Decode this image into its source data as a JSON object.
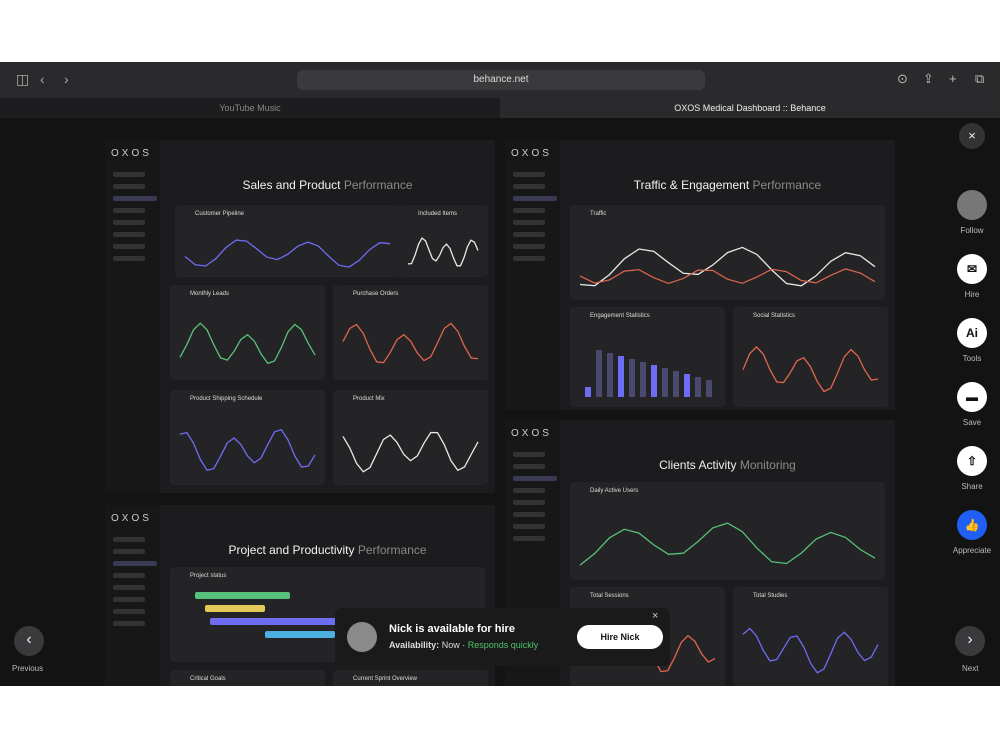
{
  "browser": {
    "url": "behance.net",
    "tabs": [
      "YouTube Music",
      "OXOS Medical Dashboard :: Behance"
    ]
  },
  "panels": [
    {
      "logo": "OXOS",
      "title": "Sales and Product",
      "title_accent": "Performance",
      "cards": [
        "Customer Pipeline",
        "Included Items",
        "Monthly Leads",
        "Purchase Orders",
        "Product Shipping Schedule",
        "Product Mix"
      ]
    },
    {
      "logo": "OXOS",
      "title": "Traffic & Engagement",
      "title_accent": "Performance",
      "cards": [
        "Traffic",
        "Engagement Statistics",
        "Social Statistics"
      ]
    },
    {
      "logo": "OXOS",
      "title": "Clients Activity",
      "title_accent": "Monitoring",
      "cards": [
        "Daily Active Users",
        "Total Sessions",
        "Total Studies"
      ]
    },
    {
      "logo": "OXOS",
      "title": "Project and Productivity",
      "title_accent": "Performance",
      "cards": [
        "Project status",
        "Critical Goals",
        "Current Sprint Overview"
      ]
    }
  ],
  "actions": [
    "Follow",
    "Hire",
    "Tools",
    "Save",
    "Share",
    "Appreciate"
  ],
  "nav": {
    "previous": "Previous",
    "next": "Next"
  },
  "hire": {
    "title": "Nick is available for hire",
    "availability_label": "Availability:",
    "availability": "Now",
    "responds": "Responds quickly",
    "button": "Hire Nick"
  }
}
